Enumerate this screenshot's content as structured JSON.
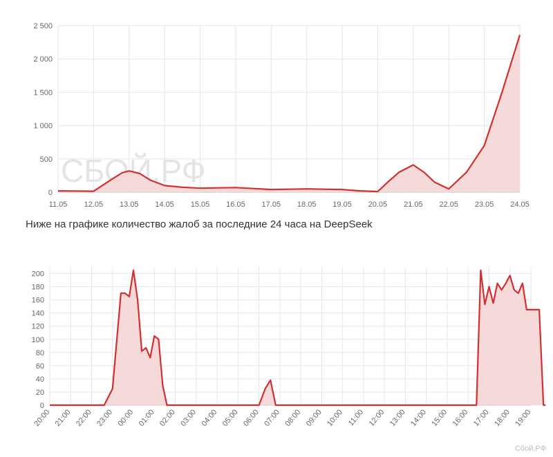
{
  "caption": "Ниже на графике количество жалоб за последние 24 часа на DeepSeek",
  "watermark": "СБОЙ.РФ",
  "watermark_small": "Сбой.РФ",
  "colors": {
    "line": "#d32f2f",
    "fill": "#f5d5d5",
    "grid": "#e6e6e6",
    "axis": "#bbbbbb"
  },
  "chart_data": [
    {
      "type": "area",
      "title": "",
      "xlabel": "",
      "ylabel": "",
      "ylim": [
        0,
        2500
      ],
      "yticks": [
        0,
        500,
        1000,
        1500,
        2000,
        2500
      ],
      "ytick_labels": [
        "0",
        "500",
        "1 000",
        "1 500",
        "2 000",
        "2 500"
      ],
      "categories": [
        "11.05",
        "12.05",
        "13.05",
        "14.05",
        "15.05",
        "16.05",
        "17.05",
        "18.05",
        "19.05",
        "20.05",
        "21.05",
        "22.05",
        "23.05",
        "24.05"
      ],
      "grid": true,
      "series": [
        {
          "x": [
            0,
            0.5,
            1,
            1.5,
            1.8,
            2,
            2.3,
            2.6,
            3,
            3.5,
            4,
            4.5,
            5,
            5.5,
            6,
            6.5,
            7,
            7.5,
            8,
            8.5,
            9,
            9.3,
            9.6,
            10,
            10.3,
            10.6,
            11,
            11.5,
            12,
            12.5,
            13
          ],
          "values": [
            20,
            18,
            15,
            190,
            290,
            320,
            280,
            180,
            100,
            75,
            60,
            65,
            70,
            55,
            40,
            45,
            50,
            45,
            40,
            20,
            10,
            160,
            300,
            410,
            300,
            150,
            50,
            300,
            700,
            1500,
            2360
          ]
        }
      ]
    },
    {
      "type": "area",
      "title": "",
      "xlabel": "",
      "ylabel": "",
      "ylim": [
        0,
        210
      ],
      "yticks": [
        0,
        20,
        40,
        60,
        80,
        100,
        120,
        140,
        160,
        180,
        200
      ],
      "categories": [
        "20:00",
        "21:00",
        "22:00",
        "23:00",
        "00:00",
        "01:00",
        "02:00",
        "03:00",
        "04:00",
        "05:00",
        "06:00",
        "07:00",
        "08:00",
        "09:00",
        "10:00",
        "11:00",
        "12:00",
        "13:00",
        "14:00",
        "15:00",
        "16:00",
        "17:00",
        "18:00",
        "19:00"
      ],
      "grid": true,
      "series": [
        {
          "x": [
            0,
            2.6,
            3.0,
            3.4,
            3.6,
            3.8,
            4.0,
            4.2,
            4.4,
            4.6,
            4.8,
            5.0,
            5.2,
            5.4,
            5.6,
            5.9,
            10.0,
            10.3,
            10.55,
            10.8,
            11.0,
            20.4,
            20.6,
            20.8,
            21.0,
            21.2,
            21.4,
            21.6,
            21.8,
            22.0,
            22.2,
            22.4,
            22.6,
            22.8,
            23.0,
            23.2,
            23.4,
            23.6,
            23.7
          ],
          "values": [
            0,
            0,
            25,
            170,
            170,
            165,
            205,
            160,
            82,
            87,
            72,
            105,
            100,
            30,
            0,
            0,
            0,
            25,
            38,
            0,
            0,
            0,
            205,
            153,
            180,
            155,
            185,
            175,
            185,
            197,
            175,
            170,
            185,
            145,
            145,
            145,
            145,
            0,
            0
          ]
        }
      ]
    }
  ]
}
